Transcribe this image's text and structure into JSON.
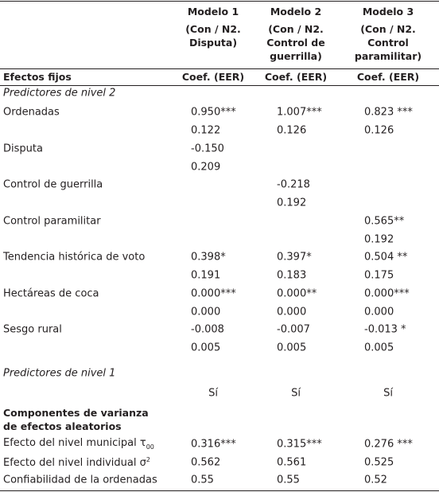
{
  "header": {
    "fixed_label": "Efectos fijos",
    "models": [
      {
        "name": "Modelo 1",
        "spec": [
          "(Con / N2.",
          "Disputa)"
        ],
        "coef": "Coef. (EER)"
      },
      {
        "name": "Modelo 2",
        "spec": [
          "(Con / N2.",
          "Control de",
          "guerrilla)"
        ],
        "coef": "Coef. (EER)"
      },
      {
        "name": "Modelo 3",
        "spec": [
          "(Con / N2.",
          "Control",
          "paramilitar)"
        ],
        "coef": "Coef. (EER)"
      }
    ]
  },
  "level2": {
    "title": "Predictores de nivel 2",
    "rows": [
      {
        "label": "Ordenadas",
        "coef": [
          "0.950***",
          "1.007***",
          "0.823 ***"
        ],
        "se": [
          "0.122",
          "0.126",
          "0.126"
        ]
      },
      {
        "label": "Disputa",
        "coef": [
          "-0.150",
          null,
          null
        ],
        "se": [
          "0.209",
          null,
          null
        ]
      },
      {
        "label": "Control de guerrilla",
        "coef": [
          null,
          "-0.218",
          null
        ],
        "se": [
          null,
          "0.192",
          null
        ]
      },
      {
        "label": "Control paramilitar",
        "coef": [
          null,
          null,
          "0.565**"
        ],
        "se": [
          null,
          null,
          "0.192"
        ]
      },
      {
        "label": "Tendencia histórica de voto",
        "coef": [
          "0.398*",
          "0.397*",
          "0.504 **"
        ],
        "se": [
          "0.191",
          "0.183",
          "0.175"
        ]
      },
      {
        "label": "Hectáreas de coca",
        "coef": [
          "0.000***",
          "0.000**",
          "0.000***"
        ],
        "se": [
          "0.000",
          "0.000",
          "0.000"
        ]
      },
      {
        "label": "Sesgo rural",
        "coef": [
          "-0.008",
          "-0.007",
          "-0.013 *"
        ],
        "se": [
          "0.005",
          "0.005",
          "0.005"
        ]
      }
    ]
  },
  "level1": {
    "title": "Predictores de nivel 1",
    "values": [
      "Sí",
      "Sí",
      "Sí"
    ]
  },
  "random": {
    "title": [
      "Componentes de varianza",
      "de efectos aleatorios"
    ],
    "rows": [
      {
        "label": "Efecto del nivel municipal τ",
        "sub": "00",
        "values": [
          "0.316***",
          "0.315***",
          "0.276 ***"
        ]
      },
      {
        "label": "Efecto del nivel individual σ",
        "sup": "2",
        "values": [
          "0.562",
          "0.561",
          "0.525"
        ]
      },
      {
        "label": "Confiabilidad de la ordenadas",
        "values": [
          "0.55",
          "0.55",
          "0.52"
        ]
      }
    ]
  }
}
